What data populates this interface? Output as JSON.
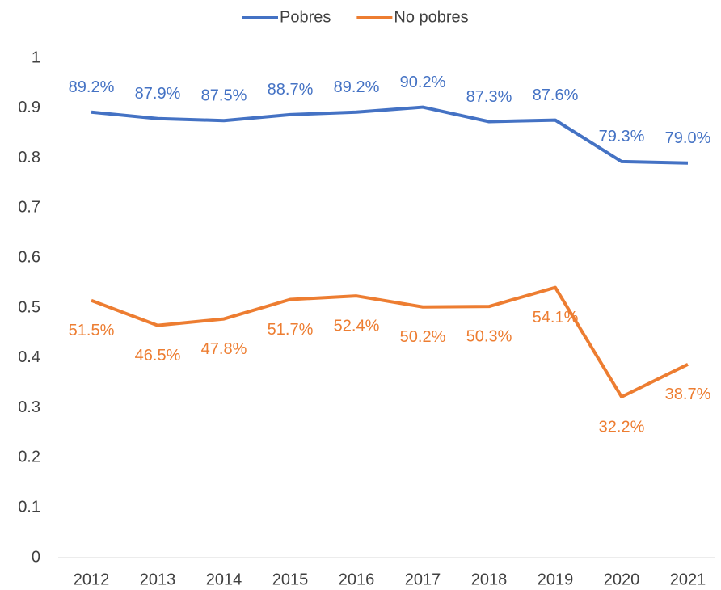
{
  "chart_data": {
    "type": "line",
    "categories": [
      "2012",
      "2013",
      "2014",
      "2015",
      "2016",
      "2017",
      "2018",
      "2019",
      "2020",
      "2021"
    ],
    "series": [
      {
        "name": "Pobres",
        "color": "#4472c4",
        "values": [
          0.892,
          0.879,
          0.875,
          0.887,
          0.892,
          0.902,
          0.873,
          0.876,
          0.793,
          0.79
        ],
        "value_labels": [
          "89.2%",
          "87.9%",
          "87.5%",
          "88.7%",
          "89.2%",
          "90.2%",
          "87.3%",
          "87.6%",
          "79.3%",
          "79.0%"
        ]
      },
      {
        "name": "No pobres",
        "color": "#ed7d31",
        "values": [
          0.515,
          0.465,
          0.478,
          0.517,
          0.524,
          0.502,
          0.503,
          0.541,
          0.322,
          0.387
        ],
        "value_labels": [
          "51.5%",
          "46.5%",
          "47.8%",
          "51.7%",
          "52.4%",
          "50.2%",
          "50.3%",
          "54.1%",
          "32.2%",
          "38.7%"
        ]
      }
    ],
    "ylim": [
      0,
      1
    ],
    "yticks": [
      0,
      0.1,
      0.2,
      0.3,
      0.4,
      0.5,
      0.6,
      0.7,
      0.8,
      0.9,
      1
    ],
    "legend": "top",
    "grid": false
  }
}
